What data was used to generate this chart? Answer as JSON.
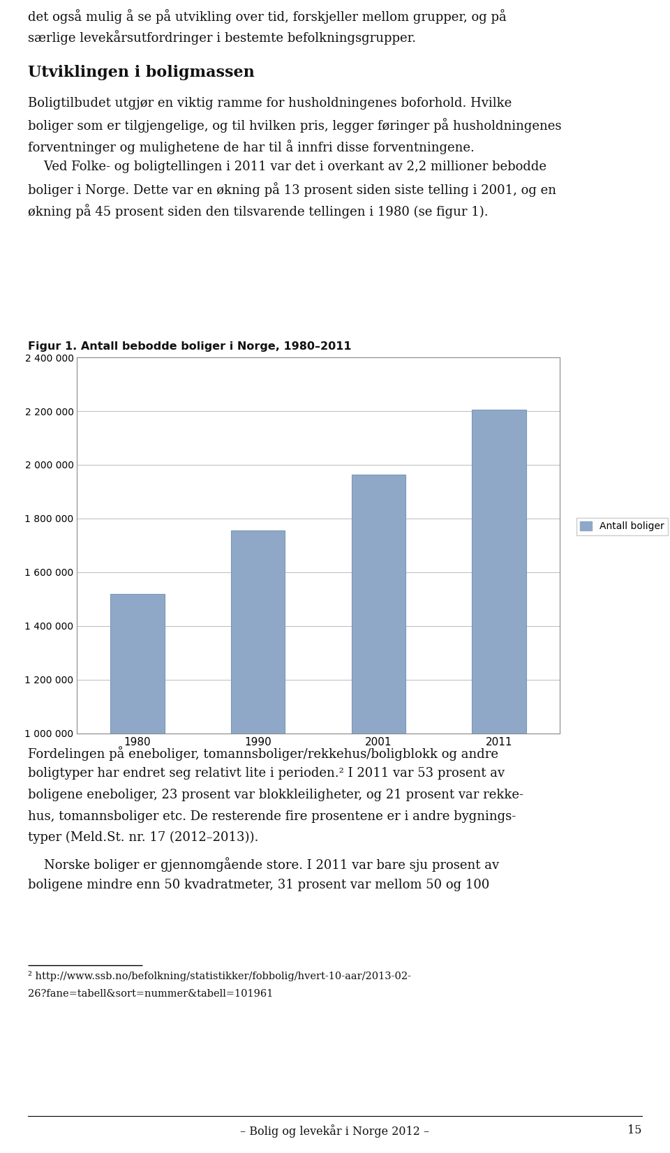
{
  "title": "Figur 1. Antall bebodde boliger i Norge, 1980–2011",
  "categories": [
    "1980",
    "1990",
    "2001",
    "2011"
  ],
  "values": [
    1520000,
    1755000,
    1963000,
    2205000
  ],
  "bar_color": "#8fa8c8",
  "bar_edge_color": "#7a96b8",
  "ylim": [
    1000000,
    2400000
  ],
  "yticks": [
    1000000,
    1200000,
    1400000,
    1600000,
    1800000,
    2000000,
    2200000,
    2400000
  ],
  "ytick_labels": [
    "1 000 000",
    "1 200 000",
    "1 400 000",
    "1 600 000",
    "1 800 000",
    "2 000 000",
    "2 200 000",
    "2 400 000"
  ],
  "legend_label": "Antall boliger",
  "legend_color": "#8fa8c8",
  "background_color": "#ffffff",
  "grid_color": "#bbbbbb",
  "border_color": "#888888",
  "tick_fontsize": 10,
  "legend_fontsize": 10,
  "page_number": "15",
  "bottom_text": "– Bolig og levekår i Norge 2012 –"
}
